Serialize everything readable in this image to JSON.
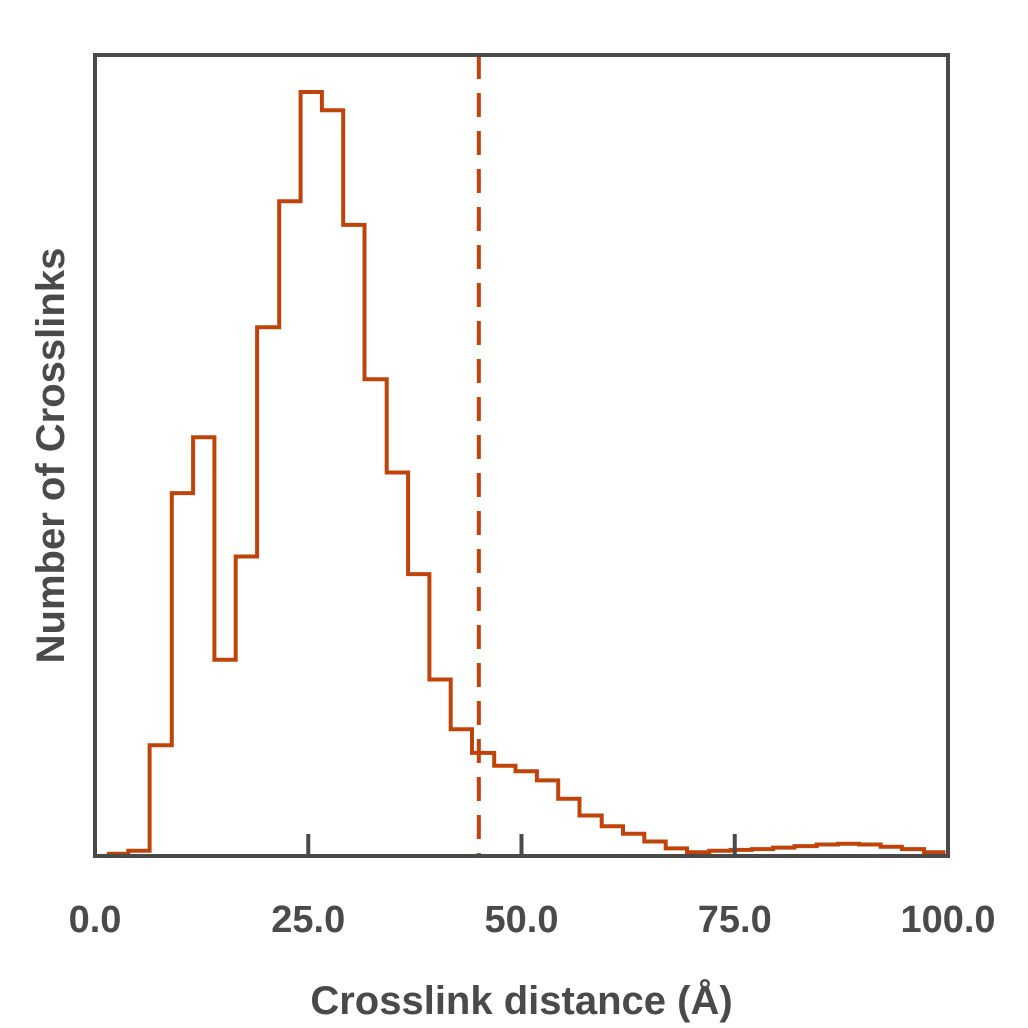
{
  "chart_data": {
    "type": "histogram",
    "title": "",
    "xlabel": "Crosslink distance (Å)",
    "ylabel": "Number of Crosslinks",
    "xlim": [
      0,
      100
    ],
    "ylim": [
      0,
      100
    ],
    "xticks": [
      0,
      25,
      50,
      75,
      100
    ],
    "xtick_labels": [
      "0.0",
      "25.0",
      "50.0",
      "75.0",
      "100.0"
    ],
    "yticks_shown": false,
    "grid": false,
    "series": [
      {
        "color": "#c0440a",
        "bin_edges": [
          1.4,
          3.9,
          6.4,
          9.0,
          11.5,
          14.0,
          16.5,
          19.0,
          21.6,
          24.1,
          26.6,
          29.1,
          31.6,
          34.2,
          36.7,
          39.2,
          41.7,
          44.2,
          46.8,
          49.3,
          51.8,
          54.3,
          56.8,
          59.4,
          61.9,
          64.4,
          66.9,
          69.4,
          72.0,
          74.5,
          77.0,
          79.5,
          82.0,
          84.6,
          87.1,
          89.6,
          92.1,
          94.6,
          97.2,
          99.7
        ],
        "counts": [
          0.3,
          0.7,
          14.5,
          47.5,
          54.8,
          25.7,
          39.2,
          69.2,
          85.7,
          100.0,
          97.6,
          82.6,
          62.4,
          50.2,
          36.9,
          23.1,
          16.6,
          13.5,
          11.8,
          11.1,
          9.9,
          7.5,
          5.3,
          3.9,
          2.9,
          1.9,
          1.0,
          0.5,
          0.7,
          0.8,
          0.9,
          1.1,
          1.3,
          1.5,
          1.6,
          1.5,
          1.2,
          0.9,
          0.5
        ]
      }
    ],
    "annotations": [
      {
        "type": "vertical-dashed-line",
        "x": 45,
        "color": "#c0440a"
      }
    ]
  }
}
